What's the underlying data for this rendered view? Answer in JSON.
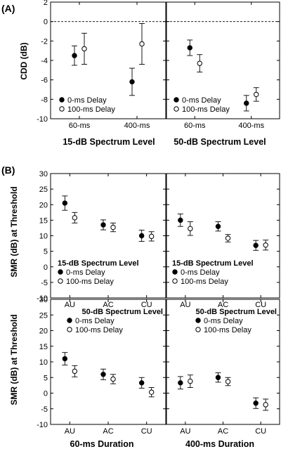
{
  "panel_letters": {
    "a": "(A)",
    "b": "(B)"
  },
  "labels": {
    "a_ylabel": "CDD (dB)",
    "b_ylabel": "SMR (dB) at Threshold",
    "a_bottom_left": "15-dB Spectrum Level",
    "a_bottom_right": "50-dB Spectrum Level",
    "b_bottom_left": "60-ms Duration",
    "b_bottom_right": "400-ms Duration"
  },
  "legend": {
    "filled": "0-ms Delay",
    "open": "100-ms Delay",
    "title_15": "15-dB Spectrum Level",
    "title_50": "50-dB Spectrum Level"
  },
  "chart_data": [
    {
      "id": "A-left",
      "type": "scatter",
      "categories": [
        "60-ms",
        "400-ms"
      ],
      "yticks": [
        2,
        0,
        -2,
        -4,
        -6,
        -8,
        -10
      ],
      "ylim": [
        -10,
        2
      ],
      "reference_line": 0,
      "series": [
        {
          "name": "0-ms Delay",
          "marker": "filled",
          "values": [
            -3.5,
            -6.2
          ],
          "err": [
            1.0,
            1.4
          ]
        },
        {
          "name": "100-ms Delay",
          "marker": "open",
          "values": [
            -2.8,
            -2.3
          ],
          "err": [
            1.6,
            2.1
          ]
        }
      ]
    },
    {
      "id": "A-right",
      "type": "scatter",
      "categories": [
        "60-ms",
        "400-ms"
      ],
      "yticks": [
        2,
        0,
        -2,
        -4,
        -6,
        -8,
        -10
      ],
      "ylim": [
        -10,
        2
      ],
      "reference_line": 0,
      "series": [
        {
          "name": "0-ms Delay",
          "marker": "filled",
          "values": [
            -2.7,
            -8.4
          ],
          "err": [
            0.8,
            0.8
          ]
        },
        {
          "name": "100-ms Delay",
          "marker": "open",
          "values": [
            -4.3,
            -7.5
          ],
          "err": [
            0.9,
            0.7
          ]
        }
      ]
    },
    {
      "id": "B-top-left",
      "type": "scatter",
      "categories": [
        "AU",
        "AC",
        "CU"
      ],
      "yticks": [
        30,
        25,
        20,
        15,
        10,
        5,
        0,
        -5,
        -10
      ],
      "ylim": [
        -10,
        30
      ],
      "series": [
        {
          "name": "0-ms Delay",
          "marker": "filled",
          "values": [
            20.5,
            13.5,
            10.0
          ],
          "err": [
            2.3,
            1.6,
            1.8
          ]
        },
        {
          "name": "100-ms Delay",
          "marker": "open",
          "values": [
            15.8,
            12.7,
            9.8
          ],
          "err": [
            1.7,
            1.4,
            1.5
          ]
        }
      ]
    },
    {
      "id": "B-top-right",
      "type": "scatter",
      "categories": [
        "AU",
        "AC",
        "CU"
      ],
      "yticks": [
        30,
        25,
        20,
        15,
        10,
        5,
        0,
        -5,
        -10
      ],
      "ylim": [
        -10,
        30
      ],
      "series": [
        {
          "name": "0-ms Delay",
          "marker": "filled",
          "values": [
            15.0,
            13.0,
            6.9
          ],
          "err": [
            2.0,
            1.5,
            1.6
          ]
        },
        {
          "name": "100-ms Delay",
          "marker": "open",
          "values": [
            12.3,
            9.2,
            7.0
          ],
          "err": [
            2.2,
            1.2,
            1.6
          ]
        }
      ]
    },
    {
      "id": "B-bottom-left",
      "type": "scatter",
      "categories": [
        "AU",
        "AC",
        "CU"
      ],
      "yticks": [
        30,
        25,
        20,
        15,
        10,
        5,
        0,
        -5,
        -10
      ],
      "ylim": [
        -10,
        30
      ],
      "series": [
        {
          "name": "0-ms Delay",
          "marker": "filled",
          "values": [
            11.0,
            6.0,
            3.3
          ],
          "err": [
            2.0,
            1.7,
            1.7
          ]
        },
        {
          "name": "100-ms Delay",
          "marker": "open",
          "values": [
            7.0,
            4.5,
            0.3
          ],
          "err": [
            1.8,
            1.5,
            1.5
          ]
        }
      ]
    },
    {
      "id": "B-bottom-right",
      "type": "scatter",
      "categories": [
        "AU",
        "AC",
        "CU"
      ],
      "yticks": [
        30,
        25,
        20,
        15,
        10,
        5,
        0,
        -5,
        -10
      ],
      "ylim": [
        -10,
        30
      ],
      "series": [
        {
          "name": "0-ms Delay",
          "marker": "filled",
          "values": [
            3.3,
            5.0,
            -3.2
          ],
          "err": [
            2.0,
            1.5,
            1.7
          ]
        },
        {
          "name": "100-ms Delay",
          "marker": "open",
          "values": [
            3.8,
            3.7,
            -3.7
          ],
          "err": [
            2.0,
            1.3,
            1.8
          ]
        }
      ]
    }
  ]
}
